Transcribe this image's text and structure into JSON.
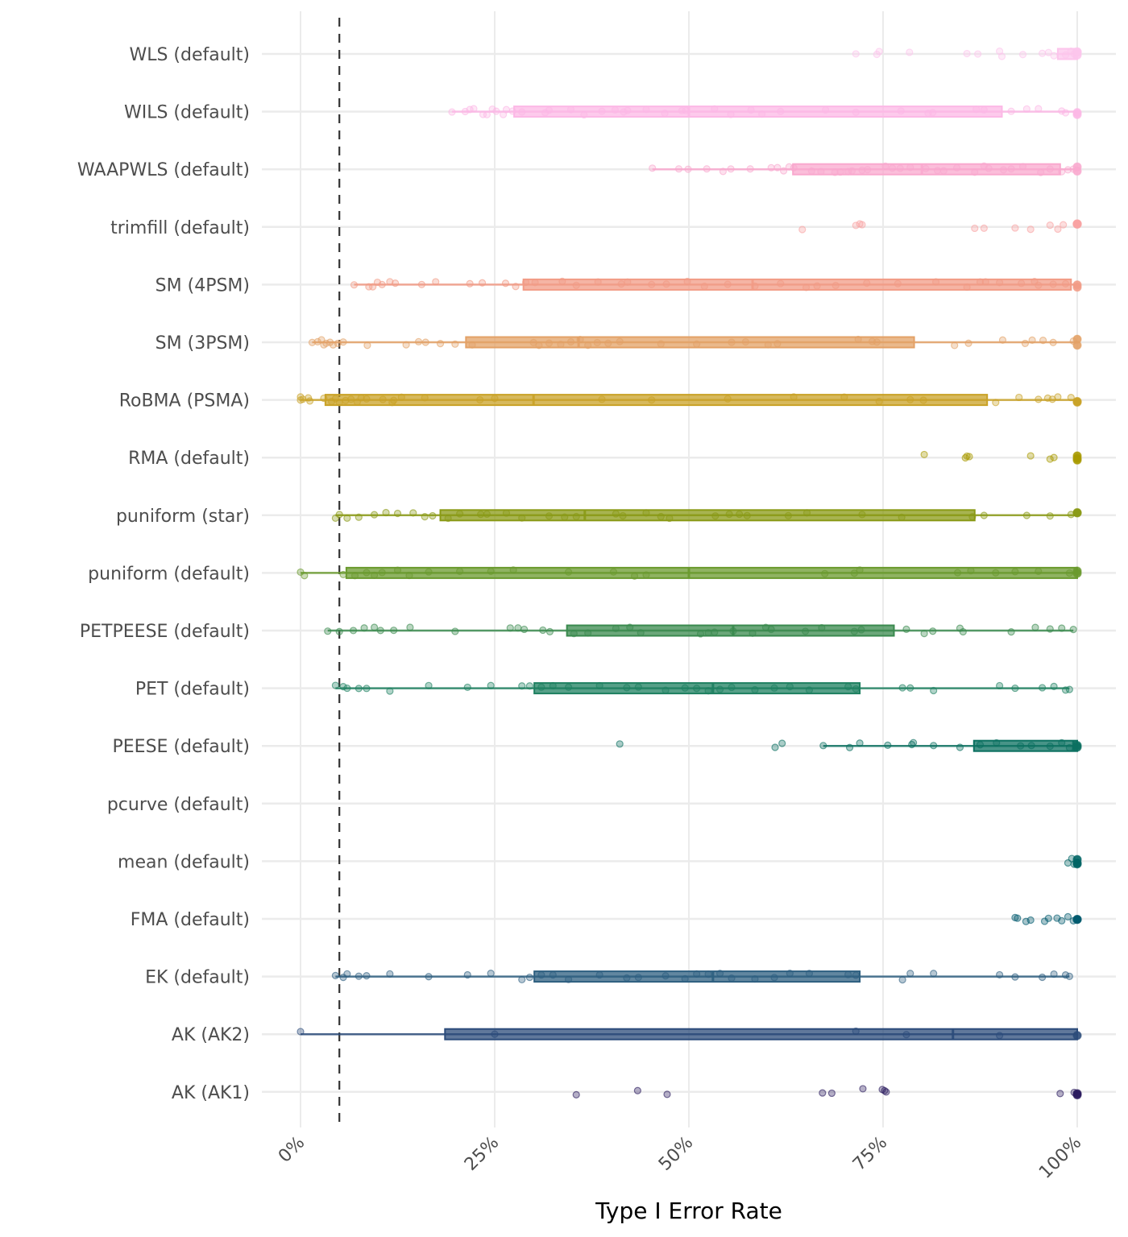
{
  "chart_data": {
    "type": "boxplot-jitter",
    "title": "",
    "xlabel": "Type I Error Rate",
    "ylabel": "",
    "xlim": [
      0,
      100
    ],
    "x_ticks": [
      0,
      25,
      50,
      75,
      100
    ],
    "x_tick_labels": [
      "0%",
      "25%",
      "50%",
      "75%",
      "100%"
    ],
    "reference_line": {
      "value": 5,
      "style": "dashed",
      "color": "#333333"
    },
    "grid": true,
    "legend": "none",
    "categories": [
      "WLS (default)",
      "WILS (default)",
      "WAAPWLS (default)",
      "trimfill (default)",
      "SM (4PSM)",
      "SM (3PSM)",
      "RoBMA (PSMA)",
      "RMA (default)",
      "puniform (star)",
      "puniform (default)",
      "PETPEESE (default)",
      "PET (default)",
      "PEESE (default)",
      "pcurve (default)",
      "mean (default)",
      "FMA (default)",
      "EK (default)",
      "AK (AK2)",
      "AK (AK1)"
    ],
    "series": [
      {
        "name": "WLS (default)",
        "color": "#FCC5EC",
        "box": {
          "whisker_low": 97.3,
          "q1": 97.5,
          "median": 99.6,
          "q3": 100,
          "whisker_high": 100
        },
        "points": [
          71.5,
          74.2,
          74.5,
          78.4,
          85.8,
          87.2,
          90.0,
          90.3,
          93.0,
          95.5,
          96.3,
          97.0,
          98.5,
          99.2,
          99.6,
          100,
          100,
          100
        ]
      },
      {
        "name": "WILS (default)",
        "color": "#FCB8E6",
        "box": {
          "whisker_low": 19.5,
          "q1": 27.5,
          "median": 50.0,
          "q3": 90.3,
          "whisker_high": 100
        },
        "points": [
          19.5,
          21.2,
          21.8,
          22.3,
          23.5,
          24.0,
          24.7,
          25.2,
          26.1,
          26.5,
          27.3,
          28.5,
          31.5,
          32.0,
          34.8,
          36.5,
          38.8,
          40.5,
          41.6,
          42.1,
          44.5,
          46.9,
          49.1,
          49.6,
          53.3,
          55.4,
          58.0,
          59.4,
          61.8,
          67.6,
          71.5,
          77.3,
          80.8,
          81.4,
          87.0,
          88.0,
          91.5,
          93.5,
          95.0,
          98.0,
          98.5,
          100,
          100
        ]
      },
      {
        "name": "WAAPWLS (default)",
        "color": "#F9A8CE",
        "box": {
          "whisker_low": 45.3,
          "q1": 63.4,
          "median": 80.0,
          "q3": 97.8,
          "whisker_high": 100
        },
        "points": [
          45.3,
          48.7,
          49.9,
          52.3,
          54.4,
          55.4,
          57.9,
          60.6,
          61.4,
          62.2,
          62.9,
          63.5,
          65.8,
          67.0,
          68.8,
          69.5,
          70.5,
          71.0,
          72.3,
          73.0,
          75.3,
          76.2,
          77.2,
          78.5,
          80.5,
          82.0,
          82.8,
          84.5,
          86.8,
          88.0,
          88.6,
          90.5,
          91.5,
          93.0,
          95.3,
          96.5,
          98.0,
          98.8,
          99.5,
          100,
          100
        ]
      },
      {
        "name": "trimfill (default)",
        "color": "#F8A3A3",
        "box": null,
        "points": [
          64.6,
          71.5,
          72.0,
          72.3,
          86.8,
          88.0,
          92.0,
          94.0,
          96.5,
          97.5,
          98.2,
          100,
          100,
          100
        ]
      },
      {
        "name": "SM (4PSM)",
        "color": "#F29B86",
        "box": {
          "whisker_low": 6.9,
          "q1": 28.7,
          "median": 58.2,
          "q3": 99.2,
          "whisker_high": 100
        },
        "points": [
          6.9,
          8.8,
          9.3,
          9.9,
          10.5,
          11.5,
          12.2,
          15.6,
          17.4,
          21.8,
          23.4,
          26.4,
          27.7,
          29.0,
          30.2,
          33.7,
          35.5,
          38.3,
          41.3,
          42.1,
          45.2,
          47.1,
          49.8,
          52.0,
          55.0,
          58.5,
          61.8,
          65.1,
          66.5,
          68.9,
          72.9,
          76.9,
          81.8,
          85.8,
          87.5,
          88.2,
          90.0,
          92.8,
          94.5,
          95.0,
          96.9,
          98.5,
          100,
          100
        ]
      },
      {
        "name": "SM (3PSM)",
        "color": "#E3A166",
        "box": {
          "whisker_low": 1.5,
          "q1": 21.3,
          "median": 35.8,
          "q3": 79.0,
          "whisker_high": 100
        },
        "points": [
          1.5,
          2.2,
          2.7,
          3.0,
          3.3,
          3.8,
          4.2,
          4.8,
          5.5,
          8.6,
          13.6,
          15.2,
          16.1,
          18.0,
          19.9,
          22.1,
          30.0,
          30.7,
          32.0,
          33.5,
          34.8,
          36.0,
          37.0,
          38.2,
          39.6,
          41.1,
          46.4,
          51.0,
          55.5,
          57.3,
          60.2,
          61.4,
          71.8,
          73.6,
          74.2,
          84.2,
          86.0,
          90.4,
          93.3,
          94.2,
          95.6,
          96.9,
          99.5,
          100,
          100
        ]
      },
      {
        "name": "RoBMA (PSMA)",
        "color": "#C9A227",
        "box": {
          "whisker_low": 0,
          "q1": 3.2,
          "median": 30.0,
          "q3": 88.4,
          "whisker_high": 100
        },
        "points": [
          0,
          0,
          0.3,
          1.0,
          1.2,
          3.0,
          4.0,
          4.5,
          5.0,
          5.8,
          6.5,
          7.3,
          7.8,
          8.5,
          10.6,
          11.8,
          12.0,
          13.0,
          16.0,
          23.1,
          25.0,
          38.8,
          45.2,
          55.0,
          63.5,
          70.0,
          74.5,
          78.5,
          80.2,
          89.5,
          92.5,
          95.0,
          96.2,
          96.8,
          97.5,
          99.2,
          100,
          100
        ]
      },
      {
        "name": "RMA (default)",
        "color": "#A89A00",
        "box": null,
        "points": [
          80.3,
          85.6,
          85.8,
          86.1,
          94.0,
          96.5,
          97.0,
          100,
          100,
          100
        ]
      },
      {
        "name": "puniform (star)",
        "color": "#8A9A16",
        "box": {
          "whisker_low": 4.5,
          "q1": 18.0,
          "median": 36.6,
          "q3": 86.8,
          "whisker_high": 100
        },
        "points": [
          4.5,
          5.0,
          6.0,
          7.5,
          9.5,
          11.0,
          12.5,
          14.5,
          16.0,
          17.0,
          19.0,
          20.5,
          23.2,
          24.0,
          26.5,
          28.5,
          32.0,
          34.0,
          35.5,
          40.6,
          41.5,
          44.5,
          46.4,
          47.5,
          53.4,
          55.2,
          56.5,
          57.5,
          62.8,
          65.2,
          72.3,
          77.4,
          86.5,
          88.0,
          93.5,
          96.5,
          99.2,
          100,
          100
        ]
      },
      {
        "name": "puniform (default)",
        "color": "#6A9A2E",
        "box": {
          "whisker_low": 0,
          "q1": 5.9,
          "median": 50.0,
          "q3": 100,
          "whisker_high": 100
        },
        "points": [
          0,
          0.5,
          5.5,
          7.0,
          8.5,
          9.5,
          10.5,
          12.5,
          14.0,
          16.5,
          20.5,
          24.5,
          27.4,
          34.5,
          40.3,
          43.0,
          44.5,
          67.5,
          71.3,
          72.0,
          84.6,
          86.3,
          89.5,
          92.0,
          95.0,
          99.0,
          100,
          100
        ]
      },
      {
        "name": "PETPEESE (default)",
        "color": "#3A8A4E",
        "box": {
          "whisker_low": 3.5,
          "q1": 34.3,
          "median": 55.7,
          "q3": 76.4,
          "whisker_high": 99.5
        },
        "points": [
          3.5,
          5.0,
          6.8,
          8.2,
          9.5,
          10.3,
          12.0,
          14.1,
          19.9,
          27.0,
          28.0,
          28.8,
          31.2,
          32.1,
          35.2,
          37.0,
          40.6,
          42.4,
          43.8,
          51.5,
          52.5,
          53.3,
          55.7,
          58.2,
          59.9,
          60.6,
          65.0,
          67.1,
          71.3,
          72.2,
          78.0,
          80.3,
          81.4,
          84.9,
          85.3,
          91.5,
          94.6,
          96.5,
          98.0,
          99.5
        ]
      },
      {
        "name": "PET (default)",
        "color": "#1E8060",
        "box": {
          "whisker_low": 4.5,
          "q1": 30.1,
          "median": 53.1,
          "q3": 72.0,
          "whisker_high": 99.0
        },
        "points": [
          4.5,
          5.5,
          6.0,
          7.5,
          8.5,
          11.5,
          16.5,
          21.5,
          24.5,
          28.5,
          29.5,
          31.0,
          32.5,
          34.5,
          38.5,
          42.0,
          43.5,
          47.0,
          49.5,
          51.0,
          52.5,
          54.0,
          55.5,
          58.5,
          61.0,
          63.0,
          65.5,
          70.5,
          71.5,
          77.5,
          78.5,
          81.5,
          90.0,
          92.0,
          95.5,
          97.0,
          98.5,
          99.0
        ]
      },
      {
        "name": "PEESE (default)",
        "color": "#0B7060",
        "box": {
          "whisker_low": 67.3,
          "q1": 86.7,
          "median": 99.5,
          "q3": 100,
          "whisker_high": 100
        },
        "points": [
          41.1,
          61.1,
          62.0,
          67.3,
          70.7,
          72.0,
          75.6,
          78.7,
          78.9,
          81.5,
          84.9,
          87.5,
          89.6,
          92.7,
          94.1,
          96.5,
          98.0,
          99.0,
          100,
          100
        ]
      },
      {
        "name": "pcurve (default)",
        "color": "#0A6A6A",
        "box": null,
        "points": []
      },
      {
        "name": "mean (default)",
        "color": "#006464",
        "box": null,
        "points": [
          98.8,
          99.3,
          99.6,
          100,
          100,
          100
        ]
      },
      {
        "name": "FMA (default)",
        "color": "#005A6E",
        "box": null,
        "points": [
          92.0,
          92.3,
          93.4,
          94.0,
          95.8,
          96.3,
          97.4,
          98.0,
          98.8,
          99.5,
          100,
          100
        ]
      },
      {
        "name": "EK (default)",
        "color": "#2E5F80",
        "box": {
          "whisker_low": 4.5,
          "q1": 30.1,
          "median": 53.1,
          "q3": 72.0,
          "whisker_high": 99.0
        },
        "points": [
          4.5,
          5.5,
          6.0,
          7.5,
          8.5,
          11.5,
          16.5,
          21.5,
          24.5,
          28.5,
          29.5,
          31.0,
          32.5,
          34.5,
          38.5,
          42.0,
          43.5,
          47.0,
          49.5,
          51.0,
          52.5,
          54.0,
          55.5,
          58.5,
          61.0,
          63.0,
          65.5,
          70.5,
          71.5,
          77.5,
          78.5,
          81.5,
          90.0,
          92.0,
          95.5,
          97.0,
          98.5,
          99.0
        ]
      },
      {
        "name": "AK (AK2)",
        "color": "#2B4B7A",
        "box": {
          "whisker_low": 0,
          "q1": 18.6,
          "median": 84.0,
          "q3": 100,
          "whisker_high": 100
        },
        "points": [
          0,
          25.0,
          71.5,
          78.0,
          90.0,
          100
        ]
      },
      {
        "name": "AK (AK1)",
        "color": "#2A1A5E",
        "box": null,
        "points": [
          35.5,
          43.4,
          47.2,
          67.2,
          68.4,
          72.4,
          74.9,
          75.2,
          75.4,
          97.8,
          99.6,
          100,
          100
        ]
      }
    ]
  }
}
